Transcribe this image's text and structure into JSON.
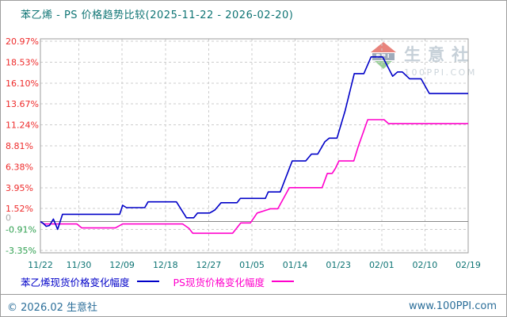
{
  "header": {
    "title": "苯乙烯 - PS 价格趋势比较(2025-11-22 - 2026-02-20)"
  },
  "watermark": {
    "brand": "生意社",
    "site": "100PPI.COM",
    "logo_text": "PPI"
  },
  "legend": [
    {
      "label": "苯乙烯现货价格变化幅度"
    },
    {
      "label": "PS现货价格变化幅度"
    }
  ],
  "footer": {
    "left": "© 2026.02 生意社",
    "right": "www.100PPI.com"
  },
  "colors": {
    "title": "#0e7474",
    "axis_teal": "#0e7474",
    "tick_pos": "#ee2a2a",
    "tick_neg": "#2fa050",
    "tick_zero": "#ababab",
    "grid": "#cccccc",
    "border": "#9e9e9e",
    "zero_line": "#8a8a8a",
    "series_styrene": "#0000c8",
    "series_ps": "#ff00cc",
    "footer_text": "#2b6e99",
    "watermark_text": "#c6d0d8",
    "watermark_sub": "#cdd5db",
    "watermark_red": "#e8837c",
    "watermark_green": "#99cf99",
    "watermark_band": "#9fabbb"
  },
  "chart_data": {
    "type": "line",
    "title": "苯乙烯 - PS 价格趋势比较(2025-11-22 - 2026-02-20)",
    "xlabel": "",
    "ylabel": "percent change",
    "grid": "dashed",
    "legend_position": "bottom",
    "day_span": 89,
    "y_max": 20.97,
    "y_min": -3.35,
    "y_ticks": [
      {
        "label": "20.97%",
        "value": 20.97,
        "sign": "pos"
      },
      {
        "label": "18.53%",
        "value": 18.53,
        "sign": "pos"
      },
      {
        "label": "16.10%",
        "value": 16.1,
        "sign": "pos"
      },
      {
        "label": "13.67%",
        "value": 13.67,
        "sign": "pos"
      },
      {
        "label": "11.24%",
        "value": 11.24,
        "sign": "pos"
      },
      {
        "label": "8.81%",
        "value": 8.81,
        "sign": "pos"
      },
      {
        "label": "6.38%",
        "value": 6.38,
        "sign": "pos"
      },
      {
        "label": "3.95%",
        "value": 3.95,
        "sign": "pos"
      },
      {
        "label": "1.52%",
        "value": 1.52,
        "sign": "pos"
      },
      {
        "label": "0",
        "value": 0,
        "sign": "zero"
      },
      {
        "label": "-0.91%",
        "value": -0.91,
        "sign": "neg"
      },
      {
        "label": "-3.35%",
        "value": -3.35,
        "sign": "neg"
      }
    ],
    "x_ticks": [
      {
        "label": "11/22",
        "day": 0
      },
      {
        "label": "11/30",
        "day": 8
      },
      {
        "label": "12/09",
        "day": 17
      },
      {
        "label": "12/18",
        "day": 26
      },
      {
        "label": "12/27",
        "day": 35
      },
      {
        "label": "01/05",
        "day": 44
      },
      {
        "label": "01/14",
        "day": 53
      },
      {
        "label": "01/23",
        "day": 62
      },
      {
        "label": "02/01",
        "day": 71
      },
      {
        "label": "02/10",
        "day": 80
      },
      {
        "label": "02/19",
        "day": 89
      }
    ],
    "series": [
      {
        "name": "苯乙烯现货价格变化幅度",
        "color_key": "series_styrene",
        "points": [
          [
            0,
            0
          ],
          [
            0.6,
            -0.2
          ],
          [
            1.2,
            -0.55
          ],
          [
            1.9,
            -0.45
          ],
          [
            2.7,
            0.3
          ],
          [
            3.6,
            -0.9
          ],
          [
            4.6,
            0.85
          ],
          [
            16.5,
            0.85
          ],
          [
            17.1,
            1.9
          ],
          [
            17.9,
            1.62
          ],
          [
            21.7,
            1.62
          ],
          [
            22.4,
            2.3
          ],
          [
            28.3,
            2.3
          ],
          [
            30.4,
            0.45
          ],
          [
            31.9,
            0.45
          ],
          [
            32.7,
            1.0
          ],
          [
            35.2,
            1.0
          ],
          [
            36.3,
            1.35
          ],
          [
            37.6,
            2.2
          ],
          [
            40.9,
            2.2
          ],
          [
            41.6,
            2.7
          ],
          [
            46.8,
            2.7
          ],
          [
            47.4,
            3.45
          ],
          [
            49.9,
            3.45
          ],
          [
            52.4,
            7.05
          ],
          [
            55.2,
            7.05
          ],
          [
            56.4,
            7.85
          ],
          [
            57.7,
            7.85
          ],
          [
            59.2,
            9.3
          ],
          [
            60.1,
            9.7
          ],
          [
            61.7,
            9.7
          ],
          [
            63.4,
            12.9
          ],
          [
            65.3,
            17.2
          ],
          [
            67.3,
            17.2
          ],
          [
            68.8,
            19.15
          ],
          [
            71.2,
            19.15
          ],
          [
            73.3,
            16.9
          ],
          [
            74.3,
            17.4
          ],
          [
            75.3,
            17.4
          ],
          [
            76.8,
            16.6
          ],
          [
            79.2,
            16.6
          ],
          [
            80.9,
            14.9
          ],
          [
            89,
            14.9
          ]
        ]
      },
      {
        "name": "PS现货价格变化幅度",
        "color_key": "series_ps",
        "points": [
          [
            0,
            0
          ],
          [
            0.7,
            -0.27
          ],
          [
            7.6,
            -0.27
          ],
          [
            8.6,
            -0.73
          ],
          [
            15.6,
            -0.73
          ],
          [
            17.1,
            -0.27
          ],
          [
            29.6,
            -0.27
          ],
          [
            30.9,
            -0.78
          ],
          [
            31.7,
            -1.35
          ],
          [
            40,
            -1.35
          ],
          [
            41.7,
            -0.15
          ],
          [
            43.7,
            -0.15
          ],
          [
            45.1,
            1.0
          ],
          [
            46.8,
            1.3
          ],
          [
            47.9,
            1.5
          ],
          [
            49.4,
            1.5
          ],
          [
            51.8,
            3.95
          ],
          [
            58.6,
            3.95
          ],
          [
            59.7,
            5.6
          ],
          [
            60.7,
            5.6
          ],
          [
            61.4,
            6.2
          ],
          [
            62.1,
            7.05
          ],
          [
            65.2,
            7.05
          ],
          [
            66.1,
            8.7
          ],
          [
            68.1,
            11.85
          ],
          [
            71.5,
            11.85
          ],
          [
            72.4,
            11.4
          ],
          [
            89,
            11.4
          ]
        ]
      }
    ]
  }
}
